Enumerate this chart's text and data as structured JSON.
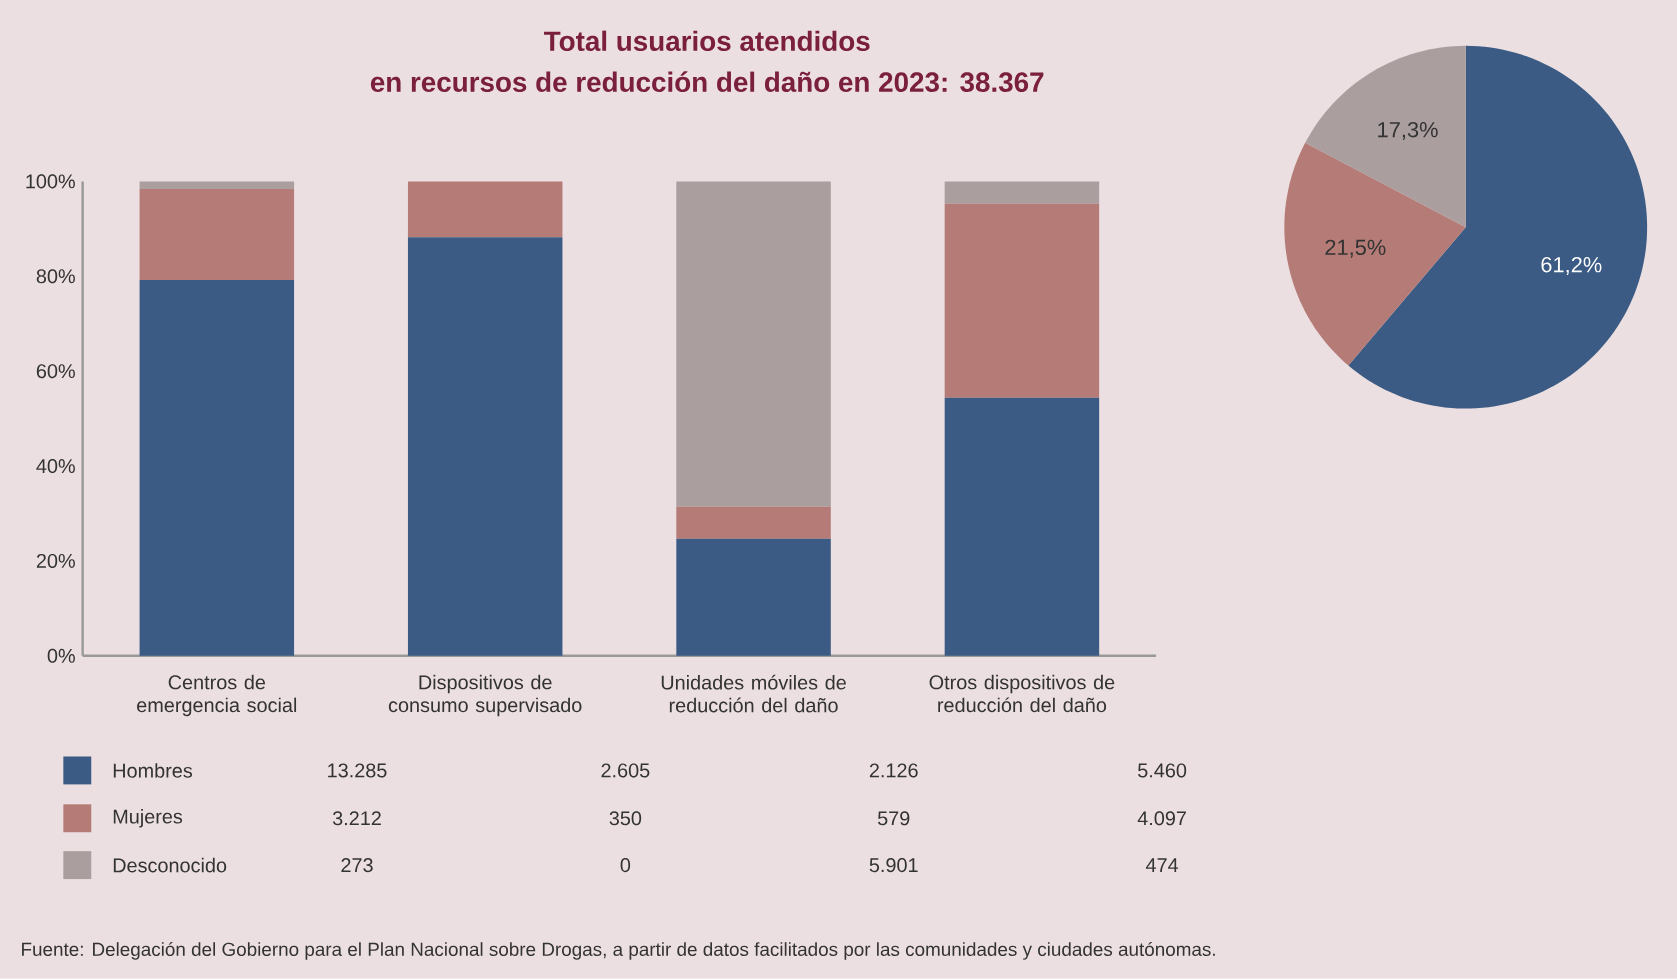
{
  "chart_data": [
    {
      "type": "bar",
      "title": "Total usuarios atendidos",
      "subtitle": "en recursos de reducción del daño en 2023: 38.367",
      "categories": [
        "Centros de emergencia social",
        "Dispositivos de consumo supervisado",
        "Unidades móviles de reducción del daño",
        "Otros dispositivos de reducción del daño"
      ],
      "series": [
        {
          "name": "Hombres",
          "color": "#3b5b84",
          "values": [
            79.2,
            88.2,
            24.7,
            54.4
          ]
        },
        {
          "name": "Mujeres",
          "color": "#b57b76",
          "values": [
            19.2,
            11.8,
            6.7,
            40.9
          ]
        },
        {
          "name": "Desconocido",
          "color": "#aa9e9f",
          "values": [
            1.6,
            0,
            68.6,
            4.7
          ]
        }
      ],
      "stacked": true,
      "ylim": [
        0,
        100
      ],
      "yticks": [
        {
          "value": 0,
          "label": "0%"
        },
        {
          "value": 20,
          "label": "20%"
        },
        {
          "value": 40,
          "label": "40%"
        },
        {
          "value": 60,
          "label": "60%"
        },
        {
          "value": 80,
          "label": "80%"
        },
        {
          "value": 100,
          "label": "100%"
        }
      ],
      "legend": "bottom",
      "annotations": [
        "Fuente: Delegación del Gobierno para el Plan Nacional sobre Drogas, a partir de datos facilitados por las comunidades y ciudades autónomas."
      ]
    },
    {
      "type": "pie",
      "categories": [
        null,
        null,
        null
      ],
      "values": [
        61.2,
        21.5,
        17.3
      ],
      "colors": [
        "#3b5b84",
        "#b57b76",
        "#aa9e9f"
      ],
      "value_labels": [
        "61,2%",
        "21,5%",
        "17,3%"
      ]
    },
    {
      "type": "other",
      "annotations": [
        "13.285",
        "2.605",
        "2.126",
        "5.460",
        "3.212",
        "350",
        "579",
        "4.097",
        "273",
        "0",
        "5.901",
        "474"
      ]
    }
  ]
}
